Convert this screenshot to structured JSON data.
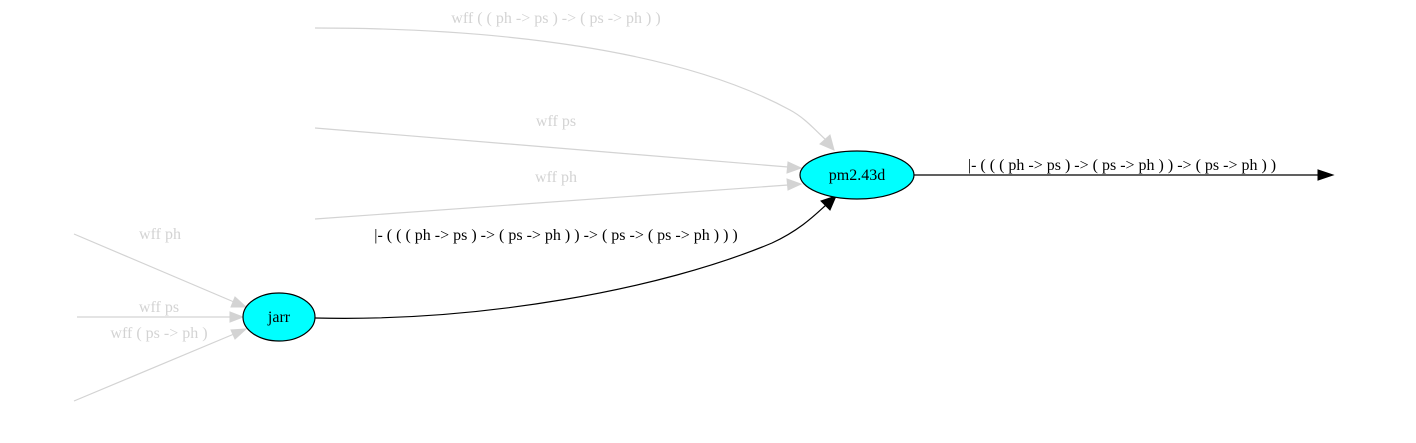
{
  "colors": {
    "node_fill": "#00ffff",
    "node_stroke": "#000000",
    "inactive_edge": "#d3d3d3",
    "active_edge": "#000000"
  },
  "nodes": {
    "jarr": "jarr",
    "pm243d": "pm2.43d"
  },
  "edges": {
    "wff_ph_ps_ps_ph": "wff ( ( ph -> ps ) -> ( ps -> ph ) )",
    "wff_ps_top": "wff ps",
    "wff_ph_top": "wff ph",
    "jarr_to_pm": "|- ( ( ( ph -> ps ) -> ( ps -> ph ) ) -> ( ps -> ( ps -> ph ) ) )",
    "pm_output": "|- ( ( ( ph -> ps ) -> ( ps -> ph ) ) -> ( ps -> ph ) )",
    "wff_ph_left": "wff ph",
    "wff_ps_left": "wff ps",
    "wff_ps_ph_left": "wff ( ps -> ph )"
  }
}
